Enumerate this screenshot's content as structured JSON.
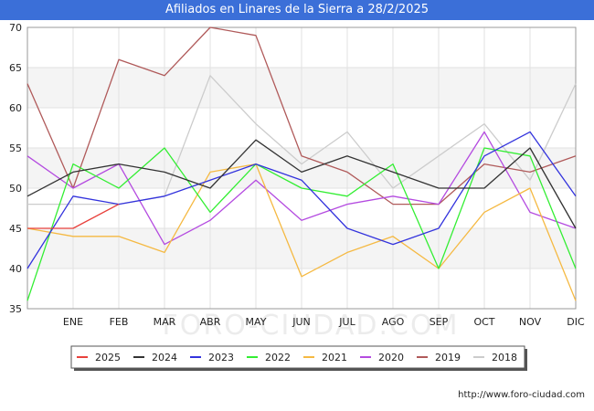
{
  "header": {
    "title": "Afiliados en Linares de la Sierra a 28/2/2025"
  },
  "footer": {
    "url": "http://www.foro-ciudad.com"
  },
  "watermark": "FORO-CIUDAD.COM",
  "chart_data": {
    "type": "line",
    "title": "Afiliados en Linares de la Sierra a 28/2/2025",
    "xlabel": "",
    "ylabel": "",
    "categories": [
      "",
      "ENE",
      "FEB",
      "MAR",
      "ABR",
      "MAY",
      "JUN",
      "JUL",
      "AGO",
      "SEP",
      "OCT",
      "NOV",
      "DIC"
    ],
    "ylim": [
      35,
      70
    ],
    "yticks": [
      35,
      40,
      45,
      50,
      55,
      60,
      65,
      70
    ],
    "grid": true,
    "legend_position": "bottom",
    "series": [
      {
        "name": "2025",
        "color": "#e8413c",
        "values": [
          45,
          45,
          48,
          null,
          null,
          null,
          null,
          null,
          null,
          null,
          null,
          null,
          null
        ]
      },
      {
        "name": "2024",
        "color": "#333333",
        "values": [
          49,
          52,
          53,
          52,
          50,
          56,
          52,
          54,
          52,
          50,
          50,
          55,
          45
        ]
      },
      {
        "name": "2023",
        "color": "#3333dd",
        "values": [
          40,
          49,
          48,
          49,
          51,
          53,
          51,
          45,
          43,
          45,
          54,
          57,
          49
        ]
      },
      {
        "name": "2022",
        "color": "#33ee33",
        "values": [
          36,
          53,
          50,
          55,
          47,
          53,
          50,
          49,
          53,
          40,
          55,
          54,
          40
        ]
      },
      {
        "name": "2021",
        "color": "#f5b942",
        "values": [
          45,
          44,
          44,
          42,
          52,
          53,
          39,
          42,
          44,
          40,
          47,
          50,
          36
        ]
      },
      {
        "name": "2020",
        "color": "#b44be0",
        "values": [
          54,
          50,
          53,
          43,
          46,
          51,
          46,
          48,
          49,
          48,
          57,
          47,
          45
        ]
      },
      {
        "name": "2019",
        "color": "#b05a5a",
        "values": [
          63,
          50,
          66,
          64,
          70,
          69,
          54,
          52,
          48,
          48,
          53,
          52,
          54
        ]
      },
      {
        "name": "2018",
        "color": "#cccccc",
        "values": [
          48,
          48,
          48,
          49,
          64,
          58,
          53,
          57,
          50,
          54,
          58,
          51,
          63
        ]
      }
    ]
  }
}
